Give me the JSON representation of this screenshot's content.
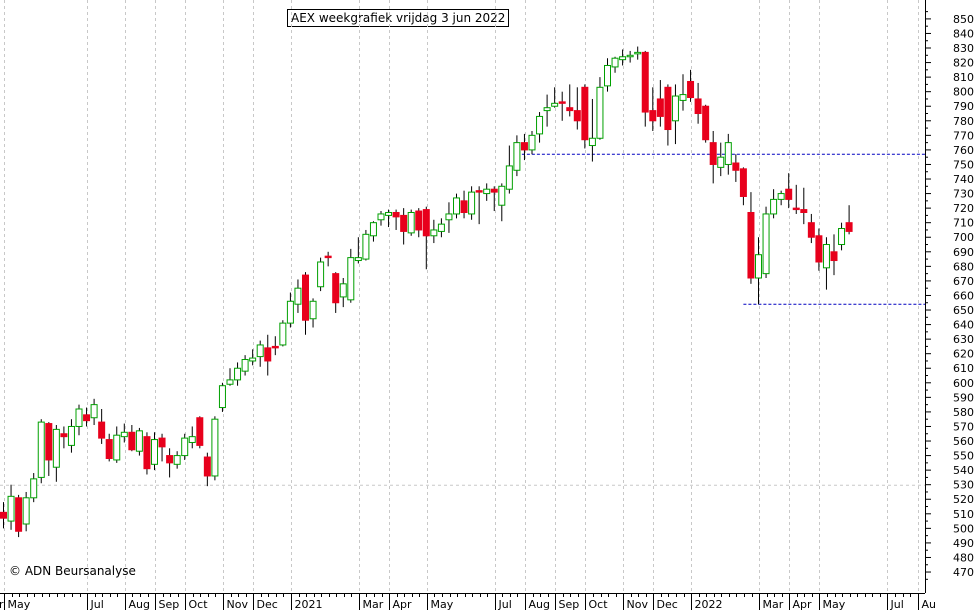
{
  "header": {
    "title": "AEX weekgrafiek vrijdag 3 jun 2022"
  },
  "footer": {
    "credit": "© ADN Beursanalyse"
  },
  "chart_data": {
    "type": "candlestick",
    "title": "AEX weekgrafiek vrijdag 3 jun 2022",
    "xlabel": "",
    "ylabel": "",
    "y_axis_side": "right",
    "ylim": [
      460,
      855
    ],
    "y_ticks": [
      470,
      480,
      490,
      500,
      510,
      520,
      530,
      540,
      550,
      560,
      570,
      580,
      590,
      600,
      610,
      620,
      630,
      640,
      650,
      660,
      670,
      680,
      690,
      700,
      710,
      720,
      730,
      740,
      750,
      760,
      770,
      780,
      790,
      800,
      810,
      820,
      830,
      840,
      850
    ],
    "grid": true,
    "x_labels": [
      "May",
      "Jul",
      "Aug",
      "Sep",
      "Oct",
      "Nov",
      "Dec",
      "2021",
      "Mar",
      "Apr",
      "May",
      "Jul",
      "Aug",
      "Sep",
      "Oct",
      "Nov",
      "Dec",
      "2022",
      "Mar",
      "Apr",
      "May",
      "Jul",
      "Au"
    ],
    "x_label_weeks": [
      1,
      12,
      17,
      21,
      25,
      30,
      34,
      39,
      48,
      52,
      57,
      66,
      70,
      74,
      78,
      83,
      87,
      92,
      101,
      105,
      109,
      118,
      122
    ],
    "colors": {
      "up": "#00a000",
      "down": "#e8001c",
      "wick": "#000000",
      "line": "#0000c0",
      "grid": "#c8c8c8"
    },
    "reference_lines": [
      {
        "value": 757,
        "style": "dashed",
        "color": "#0000c0"
      },
      {
        "value": 654,
        "style": "dashed",
        "color": "#0000c0"
      }
    ],
    "candles": [
      {
        "o": 511,
        "h": 518,
        "l": 500,
        "c": 507
      },
      {
        "o": 505,
        "h": 530,
        "l": 499,
        "c": 522
      },
      {
        "o": 521,
        "h": 523,
        "l": 494,
        "c": 498
      },
      {
        "o": 503,
        "h": 525,
        "l": 498,
        "c": 521
      },
      {
        "o": 521,
        "h": 538,
        "l": 518,
        "c": 534
      },
      {
        "o": 535,
        "h": 575,
        "l": 531,
        "c": 573
      },
      {
        "o": 572,
        "h": 573,
        "l": 536,
        "c": 547
      },
      {
        "o": 542,
        "h": 571,
        "l": 532,
        "c": 568
      },
      {
        "o": 565,
        "h": 570,
        "l": 555,
        "c": 563
      },
      {
        "o": 557,
        "h": 575,
        "l": 552,
        "c": 570
      },
      {
        "o": 570,
        "h": 585,
        "l": 564,
        "c": 582
      },
      {
        "o": 578,
        "h": 583,
        "l": 570,
        "c": 574
      },
      {
        "o": 576,
        "h": 589,
        "l": 571,
        "c": 585
      },
      {
        "o": 573,
        "h": 582,
        "l": 558,
        "c": 562
      },
      {
        "o": 561,
        "h": 565,
        "l": 546,
        "c": 548
      },
      {
        "o": 547,
        "h": 570,
        "l": 545,
        "c": 564
      },
      {
        "o": 563,
        "h": 572,
        "l": 559,
        "c": 566
      },
      {
        "o": 566,
        "h": 571,
        "l": 553,
        "c": 554
      },
      {
        "o": 553,
        "h": 569,
        "l": 550,
        "c": 567
      },
      {
        "o": 563,
        "h": 566,
        "l": 537,
        "c": 541
      },
      {
        "o": 544,
        "h": 566,
        "l": 540,
        "c": 561
      },
      {
        "o": 562,
        "h": 565,
        "l": 546,
        "c": 556
      },
      {
        "o": 550,
        "h": 555,
        "l": 535,
        "c": 545
      },
      {
        "o": 544,
        "h": 553,
        "l": 541,
        "c": 550
      },
      {
        "o": 550,
        "h": 565,
        "l": 547,
        "c": 562
      },
      {
        "o": 559,
        "h": 570,
        "l": 555,
        "c": 563
      },
      {
        "o": 576,
        "h": 577,
        "l": 555,
        "c": 557
      },
      {
        "o": 549,
        "h": 552,
        "l": 529,
        "c": 536
      },
      {
        "o": 536,
        "h": 577,
        "l": 533,
        "c": 575
      },
      {
        "o": 583,
        "h": 600,
        "l": 580,
        "c": 598
      },
      {
        "o": 599,
        "h": 610,
        "l": 598,
        "c": 602
      },
      {
        "o": 602,
        "h": 614,
        "l": 598,
        "c": 610
      },
      {
        "o": 608,
        "h": 619,
        "l": 605,
        "c": 616
      },
      {
        "o": 615,
        "h": 623,
        "l": 612,
        "c": 617
      },
      {
        "o": 618,
        "h": 629,
        "l": 611,
        "c": 626
      },
      {
        "o": 624,
        "h": 633,
        "l": 605,
        "c": 615
      },
      {
        "o": 625,
        "h": 632,
        "l": 619,
        "c": 624
      },
      {
        "o": 626,
        "h": 643,
        "l": 625,
        "c": 641
      },
      {
        "o": 641,
        "h": 662,
        "l": 638,
        "c": 656
      },
      {
        "o": 654,
        "h": 671,
        "l": 648,
        "c": 665
      },
      {
        "o": 674,
        "h": 676,
        "l": 633,
        "c": 643
      },
      {
        "o": 644,
        "h": 658,
        "l": 638,
        "c": 656
      },
      {
        "o": 666,
        "h": 686,
        "l": 663,
        "c": 683
      },
      {
        "o": 687,
        "h": 690,
        "l": 680,
        "c": 686
      },
      {
        "o": 675,
        "h": 676,
        "l": 648,
        "c": 655
      },
      {
        "o": 659,
        "h": 672,
        "l": 652,
        "c": 668
      },
      {
        "o": 657,
        "h": 692,
        "l": 655,
        "c": 686
      },
      {
        "o": 684,
        "h": 700,
        "l": 682,
        "c": 686
      },
      {
        "o": 685,
        "h": 705,
        "l": 684,
        "c": 702
      },
      {
        "o": 701,
        "h": 711,
        "l": 697,
        "c": 710
      },
      {
        "o": 712,
        "h": 718,
        "l": 708,
        "c": 716
      },
      {
        "o": 715,
        "h": 719,
        "l": 707,
        "c": 717
      },
      {
        "o": 717,
        "h": 719,
        "l": 705,
        "c": 714
      },
      {
        "o": 715,
        "h": 720,
        "l": 695,
        "c": 704
      },
      {
        "o": 703,
        "h": 719,
        "l": 701,
        "c": 717
      },
      {
        "o": 718,
        "h": 720,
        "l": 700,
        "c": 705
      },
      {
        "o": 719,
        "h": 721,
        "l": 678,
        "c": 701
      },
      {
        "o": 701,
        "h": 712,
        "l": 696,
        "c": 705
      },
      {
        "o": 704,
        "h": 713,
        "l": 700,
        "c": 709
      },
      {
        "o": 712,
        "h": 724,
        "l": 703,
        "c": 716
      },
      {
        "o": 716,
        "h": 730,
        "l": 713,
        "c": 727
      },
      {
        "o": 725,
        "h": 732,
        "l": 713,
        "c": 717
      },
      {
        "o": 716,
        "h": 735,
        "l": 712,
        "c": 731
      },
      {
        "o": 732,
        "h": 735,
        "l": 709,
        "c": 731
      },
      {
        "o": 730,
        "h": 737,
        "l": 725,
        "c": 733
      },
      {
        "o": 733,
        "h": 735,
        "l": 718,
        "c": 731
      },
      {
        "o": 722,
        "h": 737,
        "l": 711,
        "c": 735
      },
      {
        "o": 733,
        "h": 763,
        "l": 730,
        "c": 749
      },
      {
        "o": 746,
        "h": 770,
        "l": 742,
        "c": 765
      },
      {
        "o": 765,
        "h": 771,
        "l": 753,
        "c": 760
      },
      {
        "o": 760,
        "h": 773,
        "l": 757,
        "c": 770
      },
      {
        "o": 771,
        "h": 786,
        "l": 765,
        "c": 783
      },
      {
        "o": 787,
        "h": 798,
        "l": 776,
        "c": 789
      },
      {
        "o": 790,
        "h": 803,
        "l": 789,
        "c": 792
      },
      {
        "o": 793,
        "h": 800,
        "l": 780,
        "c": 792
      },
      {
        "o": 789,
        "h": 805,
        "l": 783,
        "c": 787
      },
      {
        "o": 787,
        "h": 803,
        "l": 774,
        "c": 780
      },
      {
        "o": 803,
        "h": 805,
        "l": 761,
        "c": 767
      },
      {
        "o": 763,
        "h": 795,
        "l": 752,
        "c": 768
      },
      {
        "o": 768,
        "h": 810,
        "l": 767,
        "c": 803
      },
      {
        "o": 804,
        "h": 823,
        "l": 800,
        "c": 818
      },
      {
        "o": 817,
        "h": 824,
        "l": 813,
        "c": 823
      },
      {
        "o": 822,
        "h": 829,
        "l": 818,
        "c": 824
      },
      {
        "o": 824,
        "h": 828,
        "l": 820,
        "c": 825
      },
      {
        "o": 826,
        "h": 831,
        "l": 822,
        "c": 827
      },
      {
        "o": 827,
        "h": 828,
        "l": 776,
        "c": 786
      },
      {
        "o": 787,
        "h": 803,
        "l": 773,
        "c": 780
      },
      {
        "o": 795,
        "h": 808,
        "l": 776,
        "c": 783
      },
      {
        "o": 803,
        "h": 805,
        "l": 763,
        "c": 774
      },
      {
        "o": 780,
        "h": 805,
        "l": 764,
        "c": 797
      },
      {
        "o": 794,
        "h": 812,
        "l": 787,
        "c": 798
      },
      {
        "o": 807,
        "h": 815,
        "l": 793,
        "c": 796
      },
      {
        "o": 795,
        "h": 806,
        "l": 778,
        "c": 785
      },
      {
        "o": 790,
        "h": 791,
        "l": 765,
        "c": 767
      },
      {
        "o": 765,
        "h": 773,
        "l": 737,
        "c": 750
      },
      {
        "o": 748,
        "h": 765,
        "l": 742,
        "c": 755
      },
      {
        "o": 750,
        "h": 771,
        "l": 743,
        "c": 765
      },
      {
        "o": 751,
        "h": 757,
        "l": 738,
        "c": 746
      },
      {
        "o": 747,
        "h": 748,
        "l": 722,
        "c": 728
      },
      {
        "o": 717,
        "h": 731,
        "l": 668,
        "c": 672
      },
      {
        "o": 672,
        "h": 700,
        "l": 654,
        "c": 688
      },
      {
        "o": 675,
        "h": 721,
        "l": 672,
        "c": 716
      },
      {
        "o": 716,
        "h": 733,
        "l": 713,
        "c": 726
      },
      {
        "o": 726,
        "h": 732,
        "l": 722,
        "c": 730
      },
      {
        "o": 733,
        "h": 744,
        "l": 720,
        "c": 726
      },
      {
        "o": 720,
        "h": 736,
        "l": 716,
        "c": 719
      },
      {
        "o": 719,
        "h": 734,
        "l": 709,
        "c": 717
      },
      {
        "o": 710,
        "h": 716,
        "l": 696,
        "c": 700
      },
      {
        "o": 701,
        "h": 706,
        "l": 677,
        "c": 683
      },
      {
        "o": 679,
        "h": 700,
        "l": 664,
        "c": 695
      },
      {
        "o": 690,
        "h": 702,
        "l": 674,
        "c": 684
      },
      {
        "o": 695,
        "h": 710,
        "l": 691,
        "c": 706
      },
      {
        "o": 710,
        "h": 722,
        "l": 702,
        "c": 704
      }
    ]
  }
}
